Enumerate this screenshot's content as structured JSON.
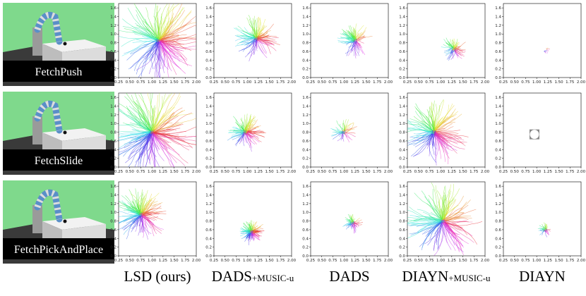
{
  "rows": [
    {
      "label": "FetchPush"
    },
    {
      "label": "FetchSlide"
    },
    {
      "label": "FetchPickAndPlace"
    }
  ],
  "columns": [
    {
      "name": "LSD (ours)"
    },
    {
      "name": "DADS",
      "suffix": "+MUSIC-u"
    },
    {
      "name": "DADS"
    },
    {
      "name": "DIAYN",
      "suffix": "+MUSIC-u"
    },
    {
      "name": "DIAYN"
    }
  ],
  "axes": {
    "xlim": [
      0.25,
      2.0
    ],
    "xticks": [
      {
        "value": 0.25,
        "label": "0.25"
      },
      {
        "value": 0.5,
        "label": "0.50"
      },
      {
        "value": 0.75,
        "label": "0.75"
      },
      {
        "value": 1.0,
        "label": "1.00"
      },
      {
        "value": 1.25,
        "label": "1.25"
      },
      {
        "value": 1.5,
        "label": "1.50"
      },
      {
        "value": 1.75,
        "label": "1.75"
      },
      {
        "value": 2.0,
        "label": "2.00"
      }
    ],
    "ylim": [
      0.0,
      1.7
    ],
    "yticks": [
      {
        "value": 0.0,
        "label": "0.0"
      },
      {
        "value": 0.2,
        "label": "0.2"
      },
      {
        "value": 0.4,
        "label": "0.4"
      },
      {
        "value": 0.6,
        "label": "0.6"
      },
      {
        "value": 0.8,
        "label": "0.8"
      },
      {
        "value": 1.0,
        "label": "1.0"
      },
      {
        "value": 1.2,
        "label": "1.2"
      },
      {
        "value": 1.4,
        "label": "1.4"
      },
      {
        "value": 1.6,
        "label": "1.6"
      }
    ]
  }
}
